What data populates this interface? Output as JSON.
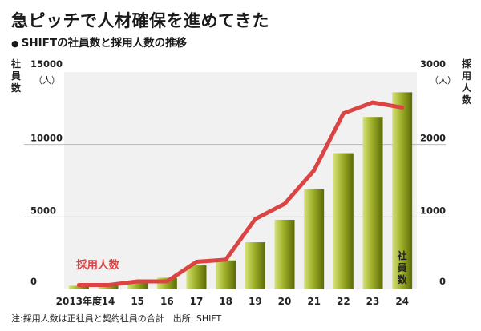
{
  "title": "急ピッチで人材確保を進めてきた",
  "subtitle": "SHIFTの社員数と採用人数の推移",
  "note": "注:採用人数は正社員と契約社員の合計　出所: SHIFT",
  "colors": {
    "background": "#ffffff",
    "plot_background": "#f1f1f1",
    "gridline": "#b9b9b9",
    "bar_light": "#d6e27a",
    "bar_mid": "#9fb02a",
    "bar_dark": "#5c6a07",
    "line": "#dc4444",
    "text": "#1a1a1a"
  },
  "chart_data": {
    "type": "bar+line",
    "categories": [
      "2013年度",
      "14",
      "15",
      "16",
      "17",
      "18",
      "19",
      "20",
      "21",
      "22",
      "23",
      "24"
    ],
    "left_axis": {
      "label": "社員数",
      "unit": "（人）",
      "range": [
        0,
        15000
      ],
      "ticks": [
        "0",
        "5000",
        "10000",
        "15000"
      ]
    },
    "right_axis": {
      "label": "採用人数",
      "unit": "（人）",
      "range": [
        0,
        3000
      ],
      "ticks": [
        "0",
        "1000",
        "2000",
        "3000"
      ]
    },
    "series": [
      {
        "name": "社員数",
        "type": "bar",
        "axis": "left",
        "values": [
          250,
          420,
          560,
          800,
          1650,
          2000,
          3250,
          4800,
          6900,
          9400,
          11900,
          13600
        ]
      },
      {
        "name": "採用人数",
        "type": "line",
        "axis": "right",
        "values": [
          60,
          60,
          110,
          110,
          380,
          410,
          970,
          1180,
          1640,
          2430,
          2580,
          2510
        ]
      }
    ],
    "gridlines": true
  }
}
